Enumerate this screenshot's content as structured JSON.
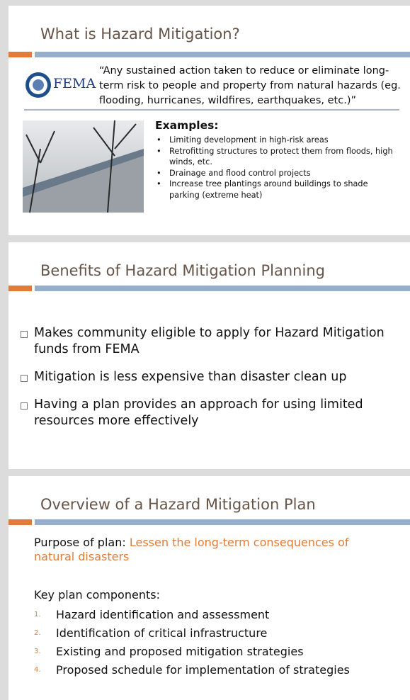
{
  "slides": [
    {
      "title": "What is Hazard Mitigation?",
      "logo_text": "FEMA",
      "quote": "“Any sustained action taken to reduce or eliminate long-term risk to people and property from natural hazards (eg. flooding, hurricanes, wildfires, earthquakes, etc.)”",
      "examples_heading": "Examples:",
      "examples": [
        "Limiting development in high-risk areas",
        "Retrofitting structures to protect  them from floods, high winds, etc.",
        "Drainage and flood control  projects",
        "Increase tree plantings around buildings to shade parking (extreme heat)"
      ]
    },
    {
      "title": "Benefits of Hazard Mitigation Planning",
      "bullets": [
        "Makes community eligible to apply for Hazard Mitigation funds from FEMA",
        "Mitigation is less expensive than disaster clean up",
        "Having a plan provides an approach for using limited resources more effectively"
      ]
    },
    {
      "title": "Overview of a Hazard Mitigation Plan",
      "purpose_label": "Purpose of plan:",
      "purpose_text": "Lessen the long-term consequences of natural disasters",
      "components_heading": "Key plan components:",
      "components": [
        {
          "number": "1.",
          "text": "Hazard identification and assessment"
        },
        {
          "number": "2.",
          "text": "Identification of critical infrastructure"
        },
        {
          "number": "3.",
          "text": "Existing and proposed mitigation strategies"
        },
        {
          "number": "4.",
          "text": "Proposed schedule for implementation of strategies"
        }
      ]
    }
  ]
}
